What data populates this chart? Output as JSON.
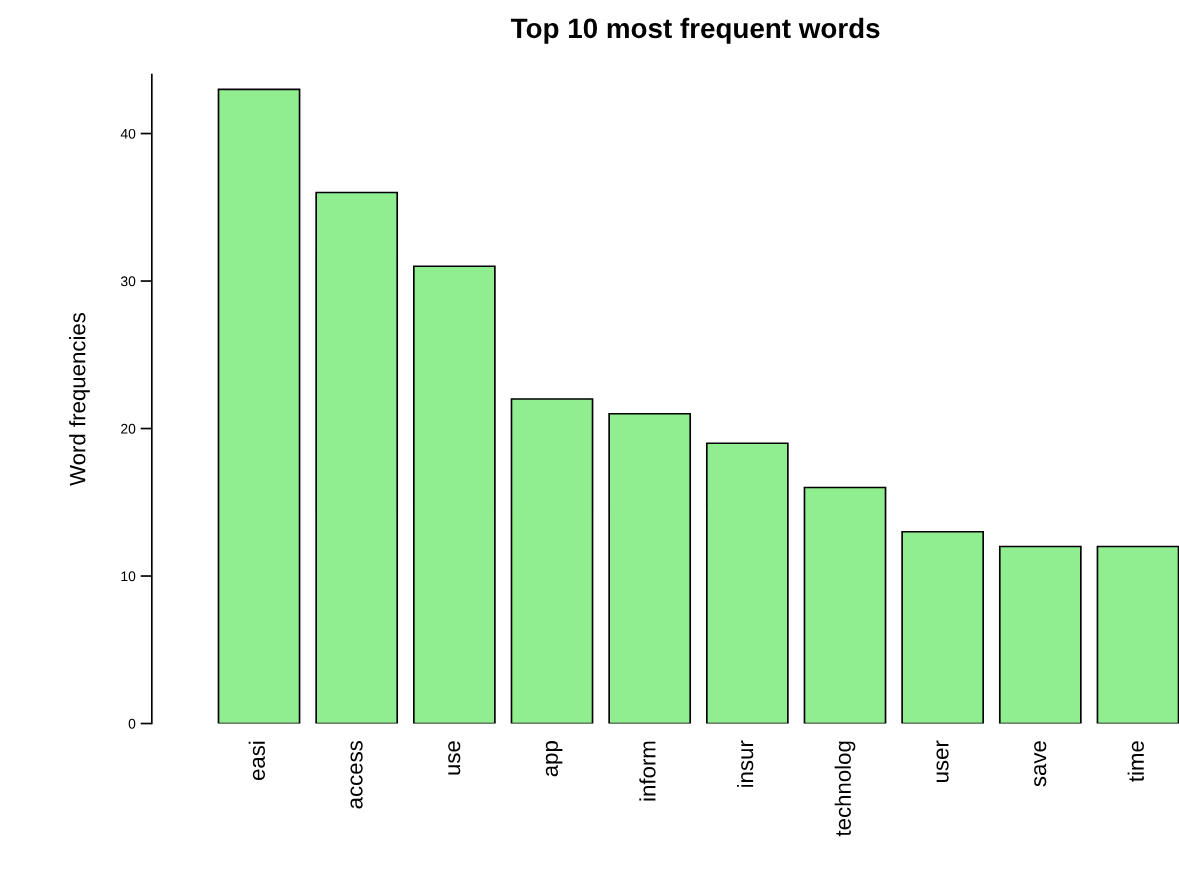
{
  "chart_data": {
    "type": "bar",
    "title": "Top 10 most frequent words",
    "ylabel": "Word frequencies",
    "categories": [
      "easi",
      "access",
      "use",
      "app",
      "inform",
      "insur",
      "technolog",
      "user",
      "save",
      "time"
    ],
    "values": [
      43,
      36,
      31,
      22,
      21,
      19,
      16,
      13,
      12,
      12
    ],
    "color": "#90ee90",
    "ylim": [
      0,
      44
    ],
    "yticks": [
      0,
      10,
      20,
      30,
      40
    ],
    "grid": false
  }
}
